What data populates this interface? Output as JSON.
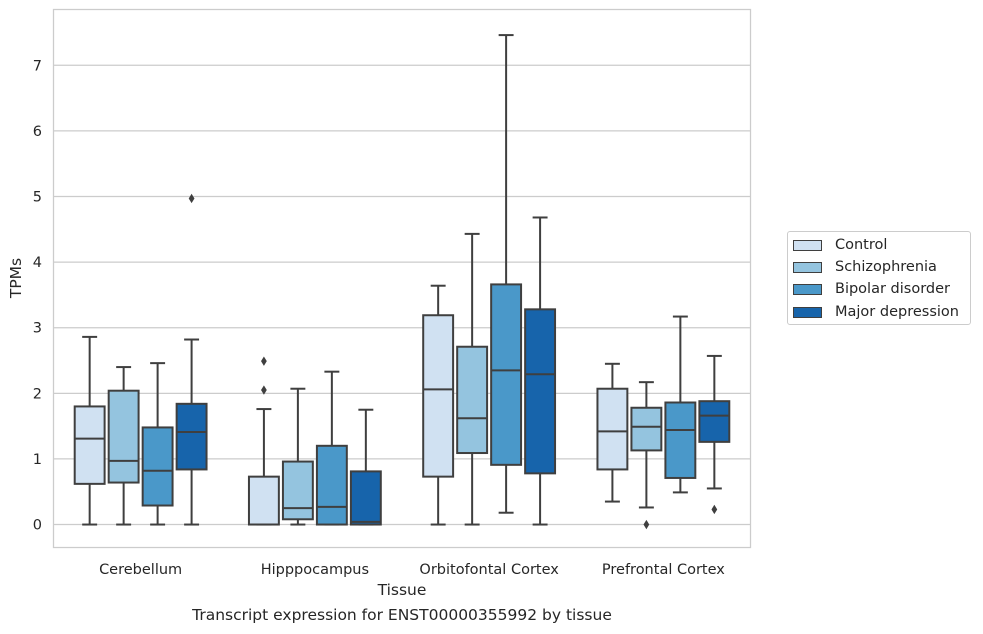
{
  "chart_data": {
    "type": "box",
    "xlabel": "Tissue",
    "ylabel": "TPMs",
    "caption": "Transcript expression for ENST00000355992 by tissue",
    "ylim": [
      -0.35,
      7.85
    ],
    "yticks": [
      0,
      1,
      2,
      3,
      4,
      5,
      6,
      7
    ],
    "ytick_labels": [
      "0",
      "1",
      "2",
      "3",
      "4",
      "5",
      "6",
      "7"
    ],
    "grid": "horizontal",
    "legend_position": "right",
    "categories": [
      "Cerebellum",
      "Hipppocampus",
      "Orbitofontal Cortex",
      "Prefrontal Cortex"
    ],
    "series": [
      {
        "name": "Control",
        "color": "#d0e1f2",
        "boxes": [
          {
            "whislo": 0.0,
            "q1": 0.62,
            "med": 1.31,
            "q3": 1.8,
            "whishi": 2.86,
            "fliers": []
          },
          {
            "whislo": 0.0,
            "q1": 0.0,
            "med": 0.0,
            "q3": 0.73,
            "whishi": 1.76,
            "fliers": [
              2.05,
              2.49
            ]
          },
          {
            "whislo": 0.0,
            "q1": 0.73,
            "med": 2.06,
            "q3": 3.19,
            "whishi": 3.64,
            "fliers": []
          },
          {
            "whislo": 0.35,
            "q1": 0.84,
            "med": 1.42,
            "q3": 2.07,
            "whishi": 2.45,
            "fliers": []
          }
        ]
      },
      {
        "name": "Schizophrenia",
        "color": "#94c4df",
        "boxes": [
          {
            "whislo": 0.0,
            "q1": 0.64,
            "med": 0.97,
            "q3": 2.04,
            "whishi": 2.4,
            "fliers": []
          },
          {
            "whislo": 0.0,
            "q1": 0.08,
            "med": 0.25,
            "q3": 0.96,
            "whishi": 2.07,
            "fliers": []
          },
          {
            "whislo": 0.0,
            "q1": 1.09,
            "med": 1.62,
            "q3": 2.71,
            "whishi": 4.43,
            "fliers": []
          },
          {
            "whislo": 0.26,
            "q1": 1.13,
            "med": 1.49,
            "q3": 1.78,
            "whishi": 2.17,
            "fliers": [
              0.0
            ]
          }
        ]
      },
      {
        "name": "Bipolar disorder",
        "color": "#4a98c9",
        "boxes": [
          {
            "whislo": 0.0,
            "q1": 0.29,
            "med": 0.82,
            "q3": 1.48,
            "whishi": 2.46,
            "fliers": []
          },
          {
            "whislo": 0.0,
            "q1": 0.0,
            "med": 0.27,
            "q3": 1.2,
            "whishi": 2.33,
            "fliers": []
          },
          {
            "whislo": 0.18,
            "q1": 0.91,
            "med": 2.35,
            "q3": 3.66,
            "whishi": 7.46,
            "fliers": []
          },
          {
            "whislo": 0.49,
            "q1": 0.71,
            "med": 1.44,
            "q3": 1.86,
            "whishi": 3.17,
            "fliers": []
          }
        ]
      },
      {
        "name": "Major depression",
        "color": "#1764ab",
        "boxes": [
          {
            "whislo": 0.0,
            "q1": 0.84,
            "med": 1.41,
            "q3": 1.84,
            "whishi": 2.82,
            "fliers": [
              4.97
            ]
          },
          {
            "whislo": 0.0,
            "q1": 0.0,
            "med": 0.04,
            "q3": 0.81,
            "whishi": 1.75,
            "fliers": []
          },
          {
            "whislo": 0.0,
            "q1": 0.78,
            "med": 2.29,
            "q3": 3.28,
            "whishi": 4.68,
            "fliers": []
          },
          {
            "whislo": 0.55,
            "q1": 1.26,
            "med": 1.66,
            "q3": 1.88,
            "whishi": 2.57,
            "fliers": [
              0.23
            ]
          }
        ]
      }
    ]
  }
}
